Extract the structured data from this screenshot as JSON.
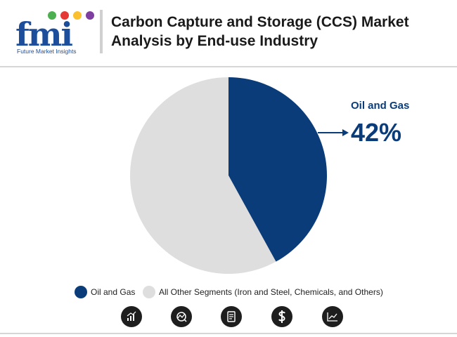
{
  "brand": {
    "logo_text": "fmi",
    "logo_caption": "Future Market Insights",
    "dot_colors": [
      "#4caf50",
      "#e53935",
      "#fbc02d",
      "#7e3fa0"
    ]
  },
  "title": "Carbon Capture and Storage (CCS) Market Analysis by End-use Industry",
  "callout": {
    "label": "Oil and Gas",
    "value": "42%"
  },
  "chart_data": {
    "type": "pie",
    "title": "Carbon Capture and Storage (CCS) Market Analysis by End-use Industry",
    "slices": [
      {
        "label": "Oil and Gas",
        "value": 42,
        "color": "#0b3c7a"
      },
      {
        "label": "All Other Segments (Iron and Steel, Chemicals, and Others)",
        "value": 58,
        "color": "#dedede"
      }
    ],
    "legend_position": "bottom"
  },
  "legend": {
    "items": [
      {
        "label": "Oil and Gas",
        "color": "#0b3c7a"
      },
      {
        "label": "All Other Segments (Iron and Steel, Chemicals, and Others)",
        "color": "#dedede"
      }
    ]
  },
  "footer_icons": [
    "bar-growth-icon",
    "analysis-gauge-icon",
    "report-document-icon",
    "dollar-icon",
    "trend-chart-icon"
  ]
}
